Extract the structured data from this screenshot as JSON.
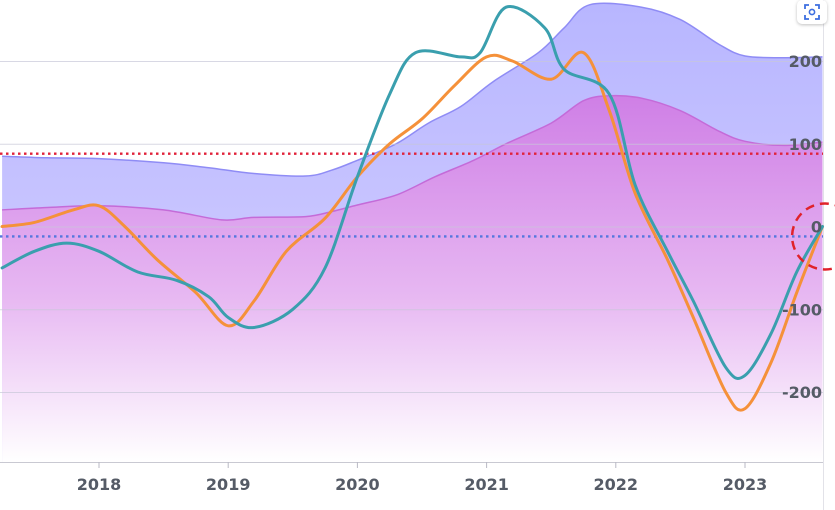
{
  "corner_button": {
    "icon": "scan-icon"
  },
  "chart_data": {
    "type": "line",
    "title": "",
    "xlabel": "",
    "ylabel": "",
    "x_ticks": [
      "2018",
      "2019",
      "2020",
      "2021",
      "2022",
      "2023"
    ],
    "y_ticks": [
      "200",
      "100",
      "0",
      "-100",
      "-200"
    ],
    "ylim": [
      -280,
      280
    ],
    "grid": true,
    "reference_lines": [
      {
        "value": 88,
        "style": "dotted",
        "color": "#e0223a"
      },
      {
        "value": -12,
        "style": "dotted",
        "color": "#5577dd"
      }
    ],
    "annotation": {
      "shape": "dashed-circle",
      "x": 2023.62,
      "y": 0,
      "color": "#e0222a"
    },
    "series": [
      {
        "kind": "area",
        "color": "#a9a6ff",
        "points": [
          [
            2017.25,
            85
          ],
          [
            2017.6,
            83
          ],
          [
            2018.0,
            82
          ],
          [
            2018.5,
            77
          ],
          [
            2018.85,
            71
          ],
          [
            2019.2,
            64
          ],
          [
            2019.6,
            61
          ],
          [
            2019.8,
            68
          ],
          [
            2020.0,
            80
          ],
          [
            2020.3,
            100
          ],
          [
            2020.55,
            125
          ],
          [
            2020.8,
            145
          ],
          [
            2021.05,
            175
          ],
          [
            2021.4,
            210
          ],
          [
            2021.6,
            240
          ],
          [
            2021.8,
            268
          ],
          [
            2022.2,
            265
          ],
          [
            2022.5,
            250
          ],
          [
            2022.8,
            220
          ],
          [
            2023.0,
            206
          ],
          [
            2023.3,
            204
          ],
          [
            2023.6,
            205
          ]
        ]
      },
      {
        "kind": "area",
        "color": "#d084e6",
        "points": [
          [
            2017.25,
            20
          ],
          [
            2017.6,
            23
          ],
          [
            2018.0,
            25
          ],
          [
            2018.5,
            20
          ],
          [
            2018.95,
            8
          ],
          [
            2019.2,
            11
          ],
          [
            2019.6,
            12
          ],
          [
            2019.8,
            18
          ],
          [
            2020.0,
            26
          ],
          [
            2020.3,
            38
          ],
          [
            2020.6,
            60
          ],
          [
            2020.9,
            80
          ],
          [
            2021.15,
            100
          ],
          [
            2021.5,
            125
          ],
          [
            2021.75,
            152
          ],
          [
            2021.95,
            158
          ],
          [
            2022.2,
            155
          ],
          [
            2022.5,
            140
          ],
          [
            2022.8,
            115
          ],
          [
            2023.0,
            103
          ],
          [
            2023.3,
            98
          ],
          [
            2023.6,
            102
          ]
        ]
      },
      {
        "kind": "line",
        "color": "#f5913a",
        "points": [
          [
            2017.25,
            0
          ],
          [
            2017.5,
            5
          ],
          [
            2017.8,
            20
          ],
          [
            2018.0,
            25
          ],
          [
            2018.2,
            0
          ],
          [
            2018.45,
            -40
          ],
          [
            2018.75,
            -80
          ],
          [
            2019.0,
            -120
          ],
          [
            2019.2,
            -90
          ],
          [
            2019.45,
            -30
          ],
          [
            2019.75,
            10
          ],
          [
            2020.0,
            60
          ],
          [
            2020.25,
            100
          ],
          [
            2020.5,
            130
          ],
          [
            2020.75,
            170
          ],
          [
            2021.0,
            205
          ],
          [
            2021.2,
            200
          ],
          [
            2021.5,
            178
          ],
          [
            2021.75,
            210
          ],
          [
            2021.95,
            140
          ],
          [
            2022.15,
            40
          ],
          [
            2022.4,
            -40
          ],
          [
            2022.6,
            -110
          ],
          [
            2022.85,
            -200
          ],
          [
            2023.0,
            -220
          ],
          [
            2023.2,
            -165
          ],
          [
            2023.4,
            -80
          ],
          [
            2023.6,
            0
          ]
        ]
      },
      {
        "kind": "line",
        "color": "#3a9fae",
        "points": [
          [
            2017.25,
            -50
          ],
          [
            2017.5,
            -30
          ],
          [
            2017.75,
            -20
          ],
          [
            2018.0,
            -30
          ],
          [
            2018.3,
            -55
          ],
          [
            2018.6,
            -65
          ],
          [
            2018.85,
            -85
          ],
          [
            2019.0,
            -110
          ],
          [
            2019.2,
            -122
          ],
          [
            2019.5,
            -100
          ],
          [
            2019.75,
            -50
          ],
          [
            2020.0,
            60
          ],
          [
            2020.25,
            160
          ],
          [
            2020.45,
            210
          ],
          [
            2020.8,
            205
          ],
          [
            2020.95,
            210
          ],
          [
            2021.15,
            265
          ],
          [
            2021.45,
            240
          ],
          [
            2021.6,
            190
          ],
          [
            2021.95,
            160
          ],
          [
            2022.15,
            50
          ],
          [
            2022.4,
            -30
          ],
          [
            2022.6,
            -90
          ],
          [
            2022.85,
            -170
          ],
          [
            2023.0,
            -180
          ],
          [
            2023.2,
            -130
          ],
          [
            2023.4,
            -55
          ],
          [
            2023.6,
            0
          ]
        ]
      }
    ]
  }
}
